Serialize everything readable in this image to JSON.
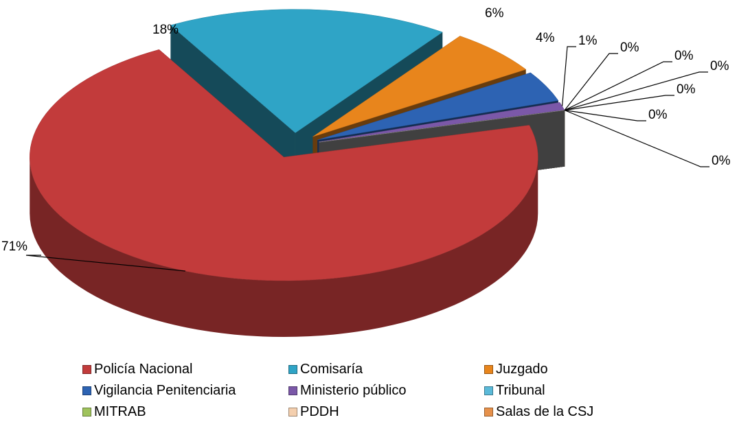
{
  "chart_data": {
    "type": "pie3d",
    "categories": [
      "Policía Nacional",
      "Comisaría",
      "Juzgado",
      "Vigilancia Penitenciaria",
      "Ministerio público",
      "Tribunal",
      "MITRAB",
      "PDDH",
      "Salas de la CSJ",
      null,
      null
    ],
    "values": [
      71,
      18,
      6,
      4,
      1,
      0,
      0,
      0,
      0,
      0,
      0
    ],
    "value_labels": [
      "71%",
      "18%",
      "6%",
      "4%",
      "1%",
      "0%",
      "0%",
      "0%",
      "0%",
      "0%",
      "0%"
    ],
    "colors": [
      "#c23b3b",
      "#2fa4c6",
      "#e8851c",
      "#2d63b3",
      "#7b58a8",
      "#5bbad9",
      "#9fc35c",
      "#f4cfae",
      "#e6914b",
      "#bbbbbb",
      "#8f8f8f"
    ]
  }
}
